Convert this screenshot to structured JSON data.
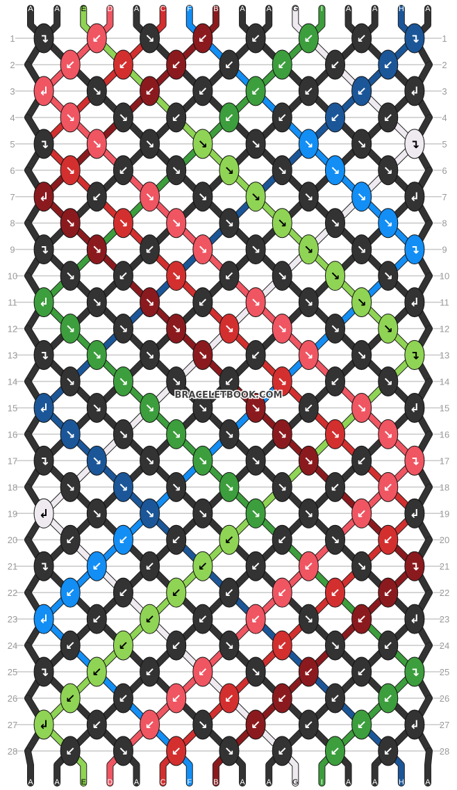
{
  "watermark": "BRACELETBOOK.COM",
  "strings_top": [
    "A",
    "A",
    "E",
    "D",
    "A",
    "C",
    "F",
    "B",
    "A",
    "A",
    "G",
    "I",
    "A",
    "A",
    "H",
    "A"
  ],
  "strings_bottom": [
    "A",
    "A",
    "E",
    "D",
    "A",
    "C",
    "F",
    "B",
    "A",
    "A",
    "G",
    "I",
    "A",
    "A",
    "H",
    "A"
  ],
  "colors": {
    "A": "#333333",
    "B": "#8b1a1e",
    "C": "#d32f2f",
    "D": "#f05562",
    "E": "#8fd454",
    "F": "#128ef5",
    "G": "#eeeaf0",
    "H": "#1b5698",
    "I": "#3c9e3c"
  },
  "knot_legend": {
    "f": "forward",
    "b": "backward",
    "fb": "forward-backward",
    "bf": "backward-forward"
  },
  "rows": [
    [
      "fb",
      "b",
      "f",
      "b",
      "b",
      "b",
      "b",
      "fb"
    ],
    [
      "b",
      "b",
      "b",
      "b",
      "b",
      "b",
      "b"
    ],
    [
      "bf",
      "f",
      "b",
      "b",
      "b",
      "b",
      "b",
      "bf"
    ],
    [
      "f",
      "f",
      "b",
      "b",
      "b",
      "b",
      "b"
    ],
    [
      "fb",
      "f",
      "f",
      "f",
      "f",
      "f",
      "f",
      "fb"
    ],
    [
      "f",
      "b",
      "f",
      "f",
      "f",
      "f",
      "f"
    ],
    [
      "bf",
      "b",
      "f",
      "f",
      "f",
      "f",
      "f",
      "bf"
    ],
    [
      "f",
      "f",
      "f",
      "f",
      "f",
      "f",
      "f"
    ],
    [
      "fb",
      "f",
      "b",
      "f",
      "f",
      "f",
      "f",
      "fb"
    ],
    [
      "f",
      "b",
      "f",
      "b",
      "f",
      "f",
      "f"
    ],
    [
      "bf",
      "f",
      "f",
      "b",
      "f",
      "f",
      "f",
      "bf"
    ],
    [
      "f",
      "f",
      "f",
      "f",
      "f",
      "f",
      "f"
    ],
    [
      "fb",
      "f",
      "f",
      "f",
      "b",
      "f",
      "f",
      "fb"
    ],
    [
      "f",
      "f",
      "f",
      "b",
      "f",
      "b",
      "f"
    ],
    [
      "bf",
      "f",
      "f",
      "f",
      "f",
      "b",
      "f",
      "bf"
    ],
    [
      "f",
      "f",
      "f",
      "f",
      "f",
      "f",
      "f"
    ],
    [
      "fb",
      "f",
      "f",
      "f",
      "f",
      "f",
      "b",
      "fb"
    ],
    [
      "f",
      "f",
      "f",
      "f",
      "f",
      "b",
      "b"
    ],
    [
      "bf",
      "f",
      "f",
      "f",
      "f",
      "f",
      "b",
      "bf"
    ],
    [
      "b",
      "b",
      "b",
      "b",
      "b",
      "f",
      "b"
    ],
    [
      "fb",
      "b",
      "b",
      "b",
      "b",
      "b",
      "f",
      "fb"
    ],
    [
      "b",
      "b",
      "b",
      "b",
      "b",
      "b",
      "b"
    ],
    [
      "bf",
      "b",
      "b",
      "b",
      "b",
      "f",
      "b",
      "bf"
    ],
    [
      "b",
      "b",
      "b",
      "f",
      "b",
      "f",
      "b"
    ],
    [
      "fb",
      "b",
      "b",
      "b",
      "f",
      "b",
      "b",
      "fb"
    ],
    [
      "b",
      "b",
      "b",
      "b",
      "b",
      "b",
      "b"
    ],
    [
      "bf",
      "b",
      "b",
      "f",
      "b",
      "b",
      "b",
      "bf"
    ],
    [
      "b",
      "f",
      "b",
      "f",
      "b",
      "b",
      "b"
    ]
  ]
}
